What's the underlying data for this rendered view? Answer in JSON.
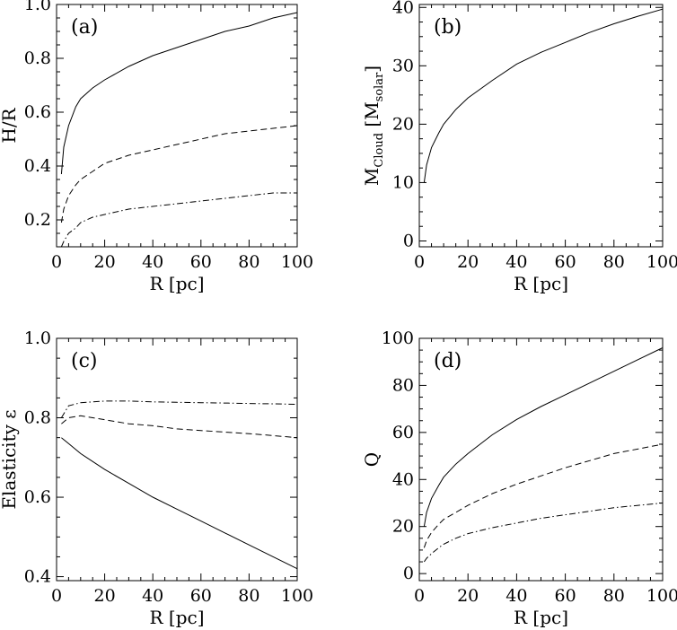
{
  "chart_data": [
    {
      "type": "line",
      "panel_label": "(a)",
      "xlabel": "R [pc]",
      "ylabel": "H/R",
      "xlim": [
        0,
        100
      ],
      "ylim": [
        0.1,
        1.0
      ],
      "xticks": [
        0,
        20,
        40,
        60,
        80,
        100
      ],
      "yticks": [
        0.2,
        0.4,
        0.6,
        0.8,
        1.0
      ],
      "ytick_labels": [
        "0.2",
        "0.4",
        "0.6",
        "0.8",
        "1.0"
      ],
      "series": [
        {
          "linestyle": "solid",
          "x": [
            2,
            3,
            5,
            8,
            10,
            15,
            20,
            30,
            40,
            50,
            60,
            70,
            80,
            90,
            100
          ],
          "y": [
            0.37,
            0.47,
            0.55,
            0.62,
            0.65,
            0.69,
            0.72,
            0.77,
            0.81,
            0.84,
            0.87,
            0.9,
            0.92,
            0.95,
            0.97
          ]
        },
        {
          "linestyle": "dashed",
          "x": [
            2,
            3,
            5,
            8,
            10,
            15,
            20,
            30,
            40,
            50,
            60,
            70,
            80,
            90,
            100
          ],
          "y": [
            0.19,
            0.24,
            0.29,
            0.33,
            0.35,
            0.38,
            0.41,
            0.44,
            0.46,
            0.48,
            0.5,
            0.52,
            0.53,
            0.54,
            0.55
          ]
        },
        {
          "linestyle": "dashdot",
          "x": [
            2,
            3,
            5,
            8,
            10,
            15,
            20,
            30,
            40,
            50,
            60,
            70,
            80,
            90,
            100
          ],
          "y": [
            0.1,
            0.12,
            0.15,
            0.17,
            0.19,
            0.21,
            0.22,
            0.24,
            0.25,
            0.26,
            0.27,
            0.28,
            0.29,
            0.3,
            0.3
          ]
        }
      ]
    },
    {
      "type": "line",
      "panel_label": "(b)",
      "xlabel": "R [pc]",
      "ylabel_main": "M",
      "ylabel_sub1": "Cloud",
      "ylabel_mid": " [M",
      "ylabel_sub2": "solar",
      "ylabel_end": "]",
      "xlim": [
        0,
        100
      ],
      "ylim": [
        -1,
        40.5
      ],
      "xticks": [
        0,
        20,
        40,
        60,
        80,
        100
      ],
      "yticks": [
        0,
        10,
        20,
        30,
        40
      ],
      "ytick_labels": [
        "0",
        "10",
        "20",
        "30",
        "40"
      ],
      "series": [
        {
          "linestyle": "solid",
          "x": [
            2,
            3,
            5,
            8,
            10,
            15,
            20,
            30,
            40,
            50,
            60,
            70,
            80,
            90,
            100
          ],
          "y": [
            10,
            13,
            16,
            18.5,
            20,
            22.5,
            24.5,
            27.5,
            30.3,
            32.3,
            34,
            35.7,
            37.2,
            38.5,
            39.7
          ]
        }
      ]
    },
    {
      "type": "line",
      "panel_label": "(c)",
      "xlabel": "R [pc]",
      "ylabel": "Elasticity ε",
      "xlim": [
        0,
        100
      ],
      "ylim": [
        0.39,
        1.0
      ],
      "xticks": [
        0,
        20,
        40,
        60,
        80,
        100
      ],
      "yticks": [
        0.4,
        0.6,
        0.8,
        1.0
      ],
      "ytick_labels": [
        "0.4",
        "0.6",
        "0.8",
        "1.0"
      ],
      "series": [
        {
          "linestyle": "solid",
          "x": [
            2,
            5,
            10,
            20,
            30,
            40,
            50,
            60,
            70,
            80,
            90,
            100
          ],
          "y": [
            0.75,
            0.735,
            0.71,
            0.67,
            0.635,
            0.6,
            0.57,
            0.54,
            0.51,
            0.48,
            0.45,
            0.42
          ]
        },
        {
          "linestyle": "dashed",
          "x": [
            2,
            5,
            10,
            20,
            30,
            40,
            50,
            60,
            70,
            80,
            90,
            100
          ],
          "y": [
            0.785,
            0.8,
            0.805,
            0.795,
            0.785,
            0.78,
            0.772,
            0.768,
            0.764,
            0.76,
            0.755,
            0.75
          ]
        },
        {
          "linestyle": "dashdot",
          "x": [
            2,
            5,
            10,
            20,
            30,
            40,
            50,
            60,
            70,
            80,
            90,
            100
          ],
          "y": [
            0.8,
            0.83,
            0.838,
            0.842,
            0.842,
            0.84,
            0.839,
            0.838,
            0.837,
            0.836,
            0.835,
            0.834
          ]
        }
      ]
    },
    {
      "type": "line",
      "panel_label": "(d)",
      "xlabel": "R [pc]",
      "ylabel": "Q",
      "xlim": [
        0,
        100
      ],
      "ylim": [
        -3,
        100
      ],
      "xticks": [
        0,
        20,
        40,
        60,
        80,
        100
      ],
      "yticks": [
        0,
        20,
        40,
        60,
        80,
        100
      ],
      "ytick_labels": [
        "0",
        "20",
        "40",
        "60",
        "80",
        "100"
      ],
      "series": [
        {
          "linestyle": "solid",
          "x": [
            2,
            3,
            5,
            8,
            10,
            15,
            20,
            30,
            40,
            50,
            60,
            70,
            80,
            90,
            100
          ],
          "y": [
            20,
            26,
            32,
            37.5,
            41,
            46.5,
            51,
            59,
            65.5,
            71,
            76,
            81,
            86,
            91,
            96
          ]
        },
        {
          "linestyle": "dashed",
          "x": [
            2,
            3,
            5,
            8,
            10,
            15,
            20,
            30,
            40,
            50,
            60,
            70,
            80,
            90,
            100
          ],
          "y": [
            11,
            14,
            17.5,
            21,
            23,
            26,
            29,
            34,
            38,
            41.5,
            45,
            48,
            51,
            53,
            55
          ]
        },
        {
          "linestyle": "dashdot",
          "x": [
            2,
            3,
            5,
            8,
            10,
            15,
            20,
            30,
            40,
            50,
            60,
            70,
            80,
            90,
            100
          ],
          "y": [
            5,
            6.5,
            8.5,
            11,
            12.5,
            15,
            17,
            19.5,
            21.5,
            23.5,
            25,
            26.5,
            28,
            29,
            30
          ]
        }
      ]
    }
  ]
}
